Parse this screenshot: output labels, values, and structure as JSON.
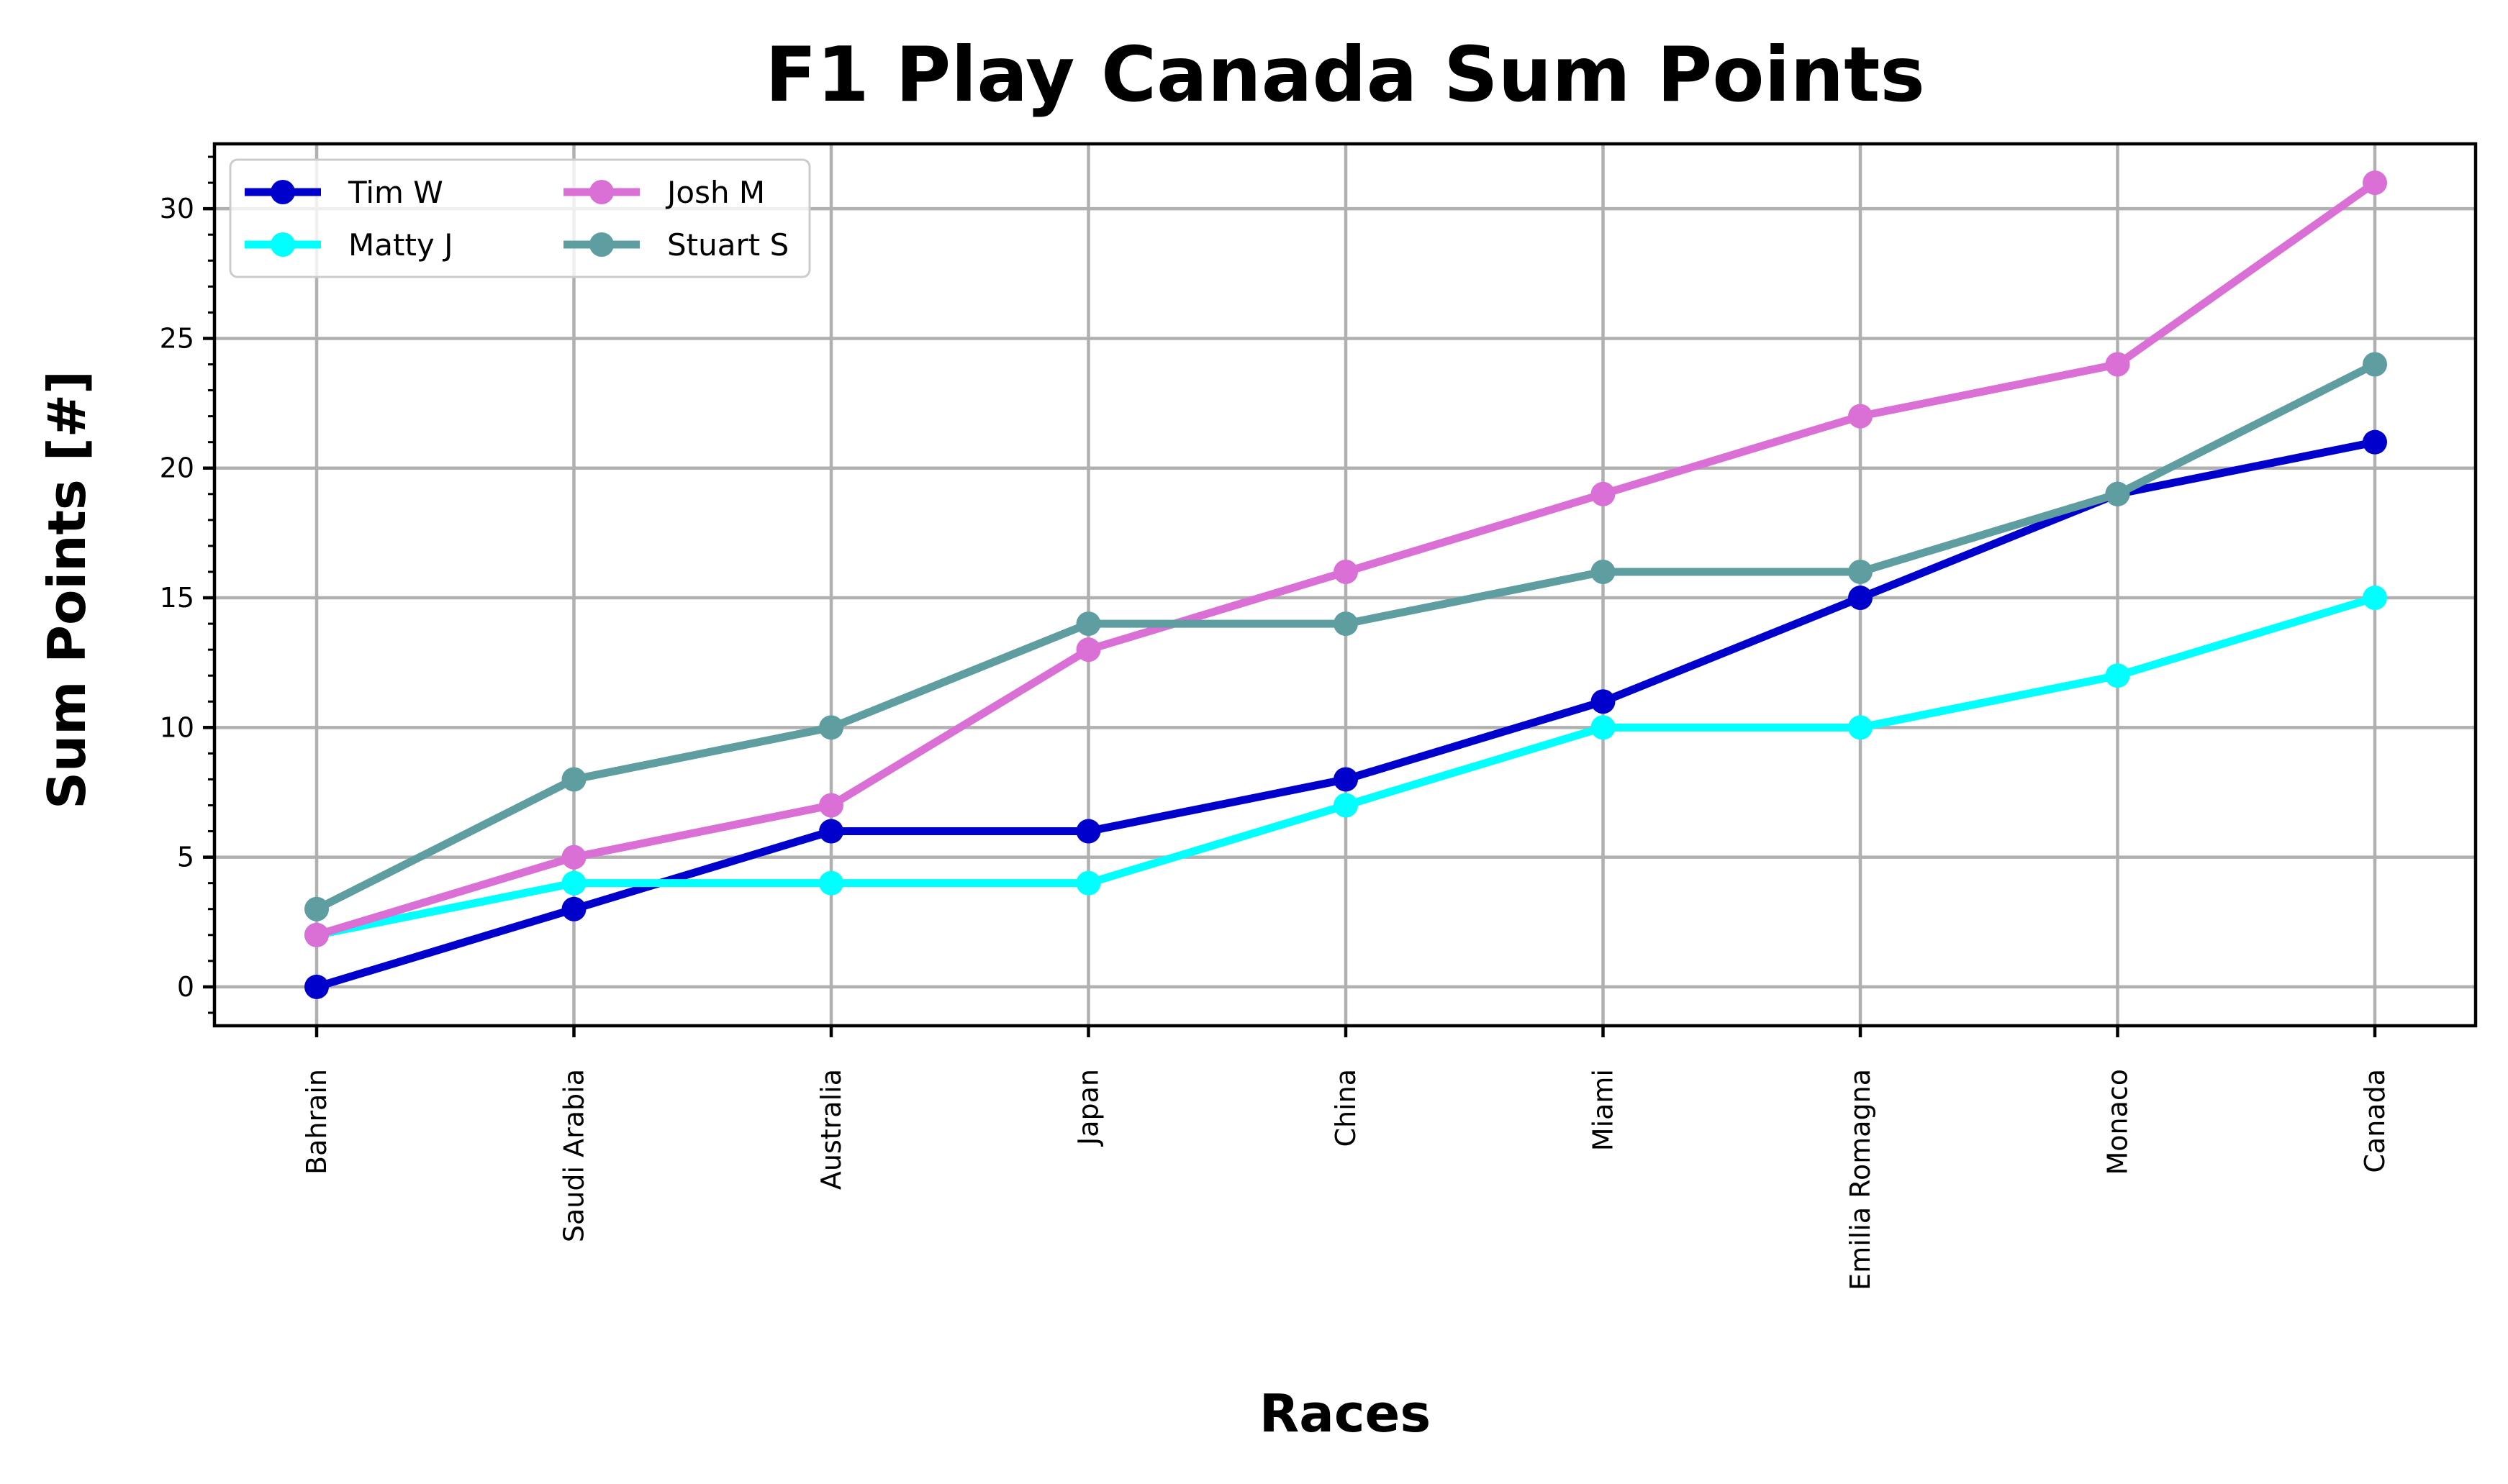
{
  "chart_data": {
    "type": "line",
    "title": "F1 Play Canada Sum Points",
    "xlabel": "Races",
    "ylabel": "Sum Points [#]",
    "categories": [
      "Bahrain",
      "Saudi Arabia",
      "Australia",
      "Japan",
      "China",
      "Miami",
      "Emilia Romagna",
      "Monaco",
      "Canada"
    ],
    "ylim": [
      -1.5,
      32.5
    ],
    "yticks": [
      0,
      5,
      10,
      15,
      20,
      25,
      30
    ],
    "grid": true,
    "legend_position": "upper-left",
    "legend_columns": 2,
    "series": [
      {
        "name": "Tim W",
        "color": "#0000cd",
        "values": [
          0,
          3,
          6,
          6,
          8,
          11,
          15,
          19,
          21
        ]
      },
      {
        "name": "Matty J",
        "color": "#00ffff",
        "values": [
          2,
          4,
          4,
          4,
          7,
          10,
          10,
          12,
          15
        ]
      },
      {
        "name": "Josh M",
        "color": "#da70d6",
        "values": [
          2,
          5,
          7,
          13,
          16,
          19,
          22,
          24,
          31
        ]
      },
      {
        "name": "Stuart S",
        "color": "#5f9ea0",
        "values": [
          3,
          8,
          10,
          14,
          14,
          16,
          16,
          19,
          24
        ]
      }
    ]
  }
}
